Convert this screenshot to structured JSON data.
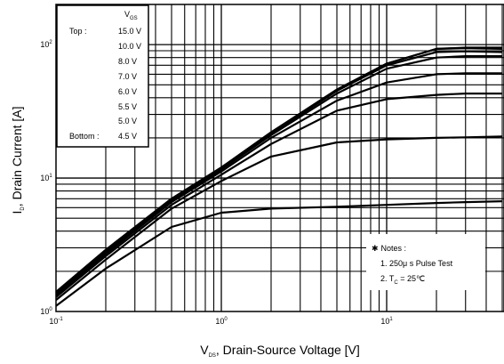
{
  "chart_data": {
    "type": "line",
    "title": "",
    "xlabel": {
      "main": "V",
      "sub": "DS",
      "rest": ", Drain-Source Voltage [V]"
    },
    "ylabel": {
      "main": "I",
      "sub": "D",
      "rest": ", Drain Current [A]"
    },
    "x_scale": "log",
    "y_scale": "log",
    "xlim": [
      0.1,
      50
    ],
    "ylim": [
      1,
      200
    ],
    "grid": true,
    "x_ticks": [
      {
        "value": 0.1,
        "base": "10",
        "exp": "-1"
      },
      {
        "value": 1,
        "base": "10",
        "exp": "0"
      },
      {
        "value": 10,
        "base": "10",
        "exp": "1"
      }
    ],
    "y_ticks": [
      {
        "value": 1,
        "base": "10",
        "exp": "0"
      },
      {
        "value": 10,
        "base": "10",
        "exp": "1"
      },
      {
        "value": 100,
        "base": "10",
        "exp": "2"
      }
    ],
    "legend": {
      "header_main": "V",
      "header_sub": "GS",
      "rows": [
        {
          "tag": "Top :",
          "value": "15.0 V"
        },
        {
          "tag": "",
          "value": "10.0 V"
        },
        {
          "tag": "",
          "value": "8.0 V"
        },
        {
          "tag": "",
          "value": "7.0 V"
        },
        {
          "tag": "",
          "value": "6.0 V"
        },
        {
          "tag": "",
          "value": "5.5 V"
        },
        {
          "tag": "",
          "value": "5.0 V"
        },
        {
          "tag": "Bottom :",
          "value": "4.5 V"
        }
      ]
    },
    "notes": {
      "title": "Notes :",
      "bullet": "✱",
      "line1": "1. 250μ s Pulse Test",
      "line2_main": "2. T",
      "line2_sub": "C",
      "line2_rest": " = 25℃"
    },
    "series": [
      {
        "value": "15.0 V",
        "x": [
          0.1,
          0.2,
          0.5,
          1,
          2,
          5,
          10,
          20,
          30,
          50
        ],
        "y": [
          1.4,
          2.9,
          7.0,
          12.0,
          22.0,
          46,
          72,
          93,
          95,
          95
        ]
      },
      {
        "value": "10.0 V",
        "x": [
          0.1,
          0.2,
          0.5,
          1,
          2,
          5,
          10,
          20,
          30,
          50
        ],
        "y": [
          1.4,
          2.9,
          7.0,
          12.0,
          22.0,
          46,
          72,
          93,
          94,
          93
        ]
      },
      {
        "value": "8.0 V",
        "x": [
          0.1,
          0.2,
          0.5,
          1,
          2,
          5,
          10,
          20,
          30,
          50
        ],
        "y": [
          1.38,
          2.85,
          6.9,
          11.8,
          21.5,
          45,
          70,
          88,
          89,
          88
        ]
      },
      {
        "value": "7.0 V",
        "x": [
          0.1,
          0.2,
          0.5,
          1,
          2,
          5,
          10,
          20,
          30,
          50
        ],
        "y": [
          1.36,
          2.8,
          6.8,
          11.6,
          21.0,
          43,
          66,
          80,
          82,
          82
        ]
      },
      {
        "value": "6.0 V",
        "x": [
          0.1,
          0.2,
          0.5,
          1,
          2,
          5,
          10,
          20,
          30,
          50
        ],
        "y": [
          1.32,
          2.7,
          6.6,
          11.2,
          20.0,
          38,
          52,
          60,
          61,
          61
        ]
      },
      {
        "value": "5.5 V",
        "x": [
          0.1,
          0.2,
          0.5,
          1,
          2,
          5,
          10,
          20,
          30,
          50
        ],
        "y": [
          1.28,
          2.6,
          6.3,
          10.6,
          18.0,
          32,
          39,
          42,
          43,
          43
        ]
      },
      {
        "value": "5.0 V",
        "x": [
          0.1,
          0.2,
          0.5,
          1,
          2,
          5,
          10,
          20,
          30,
          50
        ],
        "y": [
          1.22,
          2.45,
          5.9,
          9.5,
          14.5,
          18.5,
          19.5,
          20.0,
          20.2,
          20.5
        ]
      },
      {
        "value": "4.5 V",
        "x": [
          0.1,
          0.2,
          0.5,
          1,
          2,
          5,
          10,
          20,
          30,
          50
        ],
        "y": [
          1.1,
          2.1,
          4.3,
          5.5,
          5.9,
          6.1,
          6.3,
          6.5,
          6.6,
          6.7
        ]
      }
    ]
  }
}
